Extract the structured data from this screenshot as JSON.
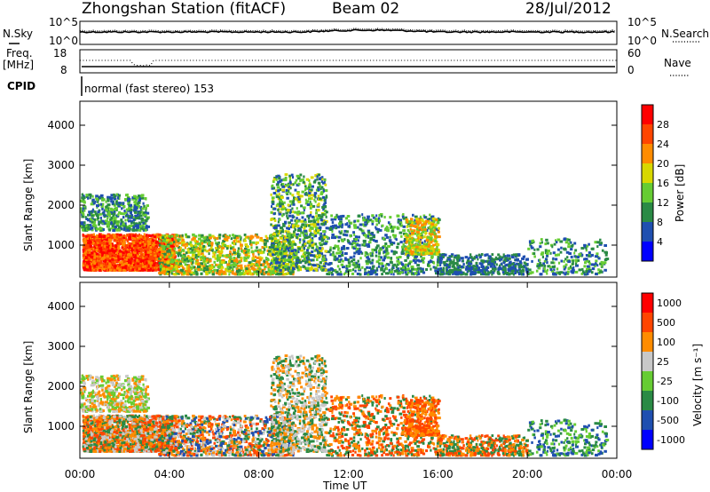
{
  "header": {
    "title": "Zhongshan Station (fitACF)",
    "beam": "Beam 02",
    "date": "28/Jul/2012"
  },
  "panel_labels": {
    "nsky": "N.Sky",
    "nsearch": "N.Search",
    "freq_line1": "Freq.",
    "freq_line2": "[MHz]",
    "nave": "Nave",
    "cpid": "CPID",
    "cpid_text": "normal (fast stereo) 153"
  },
  "colors": {
    "power_scale": [
      "#0000ff",
      "#1f4fb0",
      "#2a8a45",
      "#66cc33",
      "#d8d800",
      "#ff8c00",
      "#ff4500",
      "#ff0000"
    ],
    "velocity_scale": [
      "#ff0000",
      "#ff4500",
      "#ff8c00",
      "#c8c8c8",
      "#66cc33",
      "#2a8a45",
      "#1f4fb0",
      "#0000ff"
    ]
  },
  "chart_data": [
    {
      "type": "line",
      "name": "noise-panel",
      "yleft_ticks": [
        "10^5",
        "10^0"
      ],
      "yright_ticks": [
        "10^5",
        "10^0"
      ],
      "series": [
        {
          "name": "N.Sky"
        },
        {
          "name": "N.Search"
        }
      ]
    },
    {
      "type": "line",
      "name": "frequency-nave-panel",
      "yleft_ticks": [
        "18",
        "8"
      ],
      "yright_ticks": [
        "60",
        "0"
      ],
      "series": [
        {
          "name": "Freq. [MHz]"
        },
        {
          "name": "Nave"
        }
      ]
    },
    {
      "type": "heatmap",
      "name": "power-panel",
      "xlabel": "",
      "ylabel": "Slant Range [km]",
      "ylim": [
        200,
        4600
      ],
      "yticks": [
        "1000",
        "2000",
        "3000",
        "4000"
      ],
      "colorbar": {
        "label": "Power [dB]",
        "ticks": [
          "4",
          "8",
          "12",
          "16",
          "20",
          "24",
          "28"
        ]
      }
    },
    {
      "type": "heatmap",
      "name": "velocity-panel",
      "xlabel": "Time UT",
      "ylabel": "Slant Range [km]",
      "ylim": [
        200,
        4600
      ],
      "yticks": [
        "1000",
        "2000",
        "3000",
        "4000"
      ],
      "xticks": [
        "00:00",
        "04:00",
        "08:00",
        "12:00",
        "16:00",
        "20:00",
        "00:00"
      ],
      "colorbar": {
        "label": "Velocity [m s⁻¹]",
        "ticks": [
          "1000",
          "500",
          "100",
          "25",
          "-25",
          "-100",
          "-500",
          "-1000"
        ]
      }
    }
  ]
}
